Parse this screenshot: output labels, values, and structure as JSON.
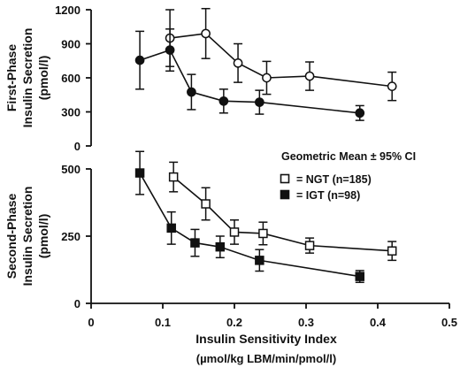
{
  "chart_data": [
    {
      "id": "first_phase",
      "type": "line",
      "ylabel_lines": [
        "First-Phase",
        "Insulin Secretion",
        "(pmol/l)"
      ],
      "ylim": [
        0,
        1200
      ],
      "yticks": [
        0,
        300,
        600,
        900,
        1200
      ],
      "xlim": [
        0,
        0.5
      ],
      "series": [
        {
          "name": "NGT",
          "marker": "open-circle",
          "points": [
            {
              "x": 0.11,
              "y": 950,
              "err": 250
            },
            {
              "x": 0.16,
              "y": 990,
              "err": 220
            },
            {
              "x": 0.205,
              "y": 730,
              "err": 170
            },
            {
              "x": 0.245,
              "y": 600,
              "err": 145
            },
            {
              "x": 0.305,
              "y": 615,
              "err": 125
            },
            {
              "x": 0.42,
              "y": 525,
              "err": 125
            }
          ]
        },
        {
          "name": "IGT",
          "marker": "filled-circle",
          "points": [
            {
              "x": 0.068,
              "y": 755,
              "err": 255
            },
            {
              "x": 0.11,
              "y": 845,
              "err": 185
            },
            {
              "x": 0.14,
              "y": 475,
              "err": 155
            },
            {
              "x": 0.185,
              "y": 395,
              "err": 105
            },
            {
              "x": 0.235,
              "y": 385,
              "err": 105
            },
            {
              "x": 0.375,
              "y": 290,
              "err": 65
            }
          ]
        }
      ]
    },
    {
      "id": "second_phase",
      "type": "line",
      "ylabel_lines": [
        "Second-Phase",
        "Insulin Secretion",
        "(pmol/l)"
      ],
      "ylim": [
        0,
        500
      ],
      "yticks": [
        0,
        250,
        500
      ],
      "xlim": [
        0,
        0.5
      ],
      "xticks": [
        "0",
        "0.1",
        "0.2",
        "0.3",
        "0.4",
        "0.5"
      ],
      "xlabel": "Insulin Sensitivity Index",
      "xlabel_units": "(µmol/kg LBM/min/pmol/l)",
      "series": [
        {
          "name": "NGT",
          "marker": "open-square",
          "points": [
            {
              "x": 0.115,
              "y": 470,
              "err": 55
            },
            {
              "x": 0.16,
              "y": 370,
              "err": 60
            },
            {
              "x": 0.2,
              "y": 265,
              "err": 45
            },
            {
              "x": 0.24,
              "y": 260,
              "err": 42
            },
            {
              "x": 0.305,
              "y": 215,
              "err": 28
            },
            {
              "x": 0.42,
              "y": 195,
              "err": 35
            }
          ]
        },
        {
          "name": "IGT",
          "marker": "filled-square",
          "points": [
            {
              "x": 0.068,
              "y": 485,
              "err": 80
            },
            {
              "x": 0.112,
              "y": 280,
              "err": 60
            },
            {
              "x": 0.145,
              "y": 225,
              "err": 50
            },
            {
              "x": 0.18,
              "y": 210,
              "err": 40
            },
            {
              "x": 0.235,
              "y": 160,
              "err": 40
            },
            {
              "x": 0.375,
              "y": 100,
              "err": 22
            }
          ]
        }
      ]
    }
  ],
  "legend": {
    "title": "Geometric Mean ± 95% CI",
    "entries": [
      {
        "marker": "open-square",
        "label": "= NGT  (n=185)"
      },
      {
        "marker": "filled-square",
        "label": "= IGT  (n=98)"
      }
    ]
  }
}
